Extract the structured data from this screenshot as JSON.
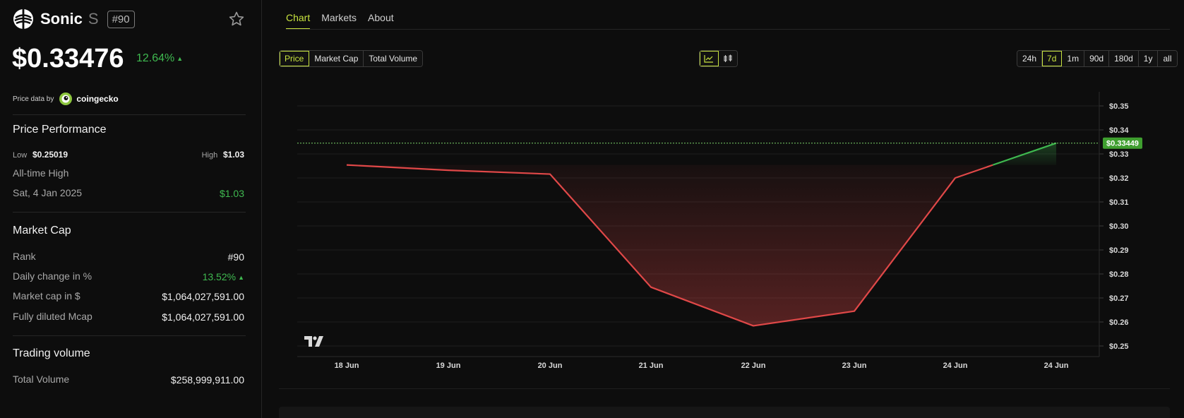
{
  "coin": {
    "name": "Sonic",
    "symbol": "S",
    "rank_badge": "#90",
    "price": "$0.33476",
    "change_24h": "12.64%",
    "logo_icon": "sonic-logo-icon",
    "favorite_icon": "star-outline-icon"
  },
  "provider": {
    "label": "Price data by",
    "name": "coingecko",
    "icon": "coingecko-logo-icon"
  },
  "price_performance": {
    "title": "Price Performance",
    "low_label": "Low",
    "low_value": "$0.25019",
    "high_label": "High",
    "high_value": "$1.03",
    "ath_label": "All-time High",
    "ath_date": "Sat, 4 Jan 2025",
    "ath_value": "$1.03"
  },
  "market_cap": {
    "title": "Market Cap",
    "rows": [
      {
        "label": "Rank",
        "value": "#90"
      },
      {
        "label": "Daily change in %",
        "value": "13.52%"
      },
      {
        "label": "Market cap in $",
        "value": "$1,064,027,591.00"
      },
      {
        "label": "Fully diluted Mcap",
        "value": "$1,064,027,591.00"
      }
    ]
  },
  "trading_volume": {
    "title": "Trading volume",
    "rows": [
      {
        "label": "Total Volume",
        "value": "$258,999,911.00"
      }
    ]
  },
  "tabs": [
    "Chart",
    "Markets",
    "About"
  ],
  "active_tab": "Chart",
  "metric_buttons": [
    "Price",
    "Market Cap",
    "Total Volume"
  ],
  "active_metric": "Price",
  "chart_type_icons": [
    "line-chart-icon",
    "candlestick-chart-icon"
  ],
  "active_chart_type": "line-chart-icon",
  "ranges": [
    "24h",
    "7d",
    "1m",
    "90d",
    "180d",
    "1y",
    "all"
  ],
  "active_range": "7d",
  "chart_watermark_icon": "tradingview-logo-icon",
  "colors": {
    "accent": "#c8e33f",
    "up": "#3fb950",
    "down": "#e04848",
    "price_tag_bg": "#3f9f2f"
  },
  "chart_data": {
    "type": "line",
    "x": [
      "18 Jun",
      "19 Jun",
      "20 Jun",
      "21 Jun",
      "22 Jun",
      "23 Jun",
      "24 Jun",
      "24 Jun"
    ],
    "x_tick_labels": [
      "18 Jun",
      "19 Jun",
      "20 Jun",
      "21 Jun",
      "22 Jun",
      "23 Jun",
      "24 Jun",
      "24 Jun"
    ],
    "series": [
      {
        "values": [
          0.3254,
          0.3232,
          0.3216,
          0.2745,
          0.2584,
          0.2645,
          0.32,
          0.3345
        ]
      }
    ],
    "baseline": 0.3254,
    "ylim": [
      0.245,
      0.355
    ],
    "y_ticks": [
      "0.25",
      "0.26",
      "0.27",
      "0.28",
      "0.29",
      "0.30",
      "0.31",
      "0.32",
      "0.33",
      "0.34",
      "0.35"
    ],
    "y_tick_prefix": "$",
    "current_price_label": "$0.33449",
    "current_price": 0.33449,
    "grid": true
  }
}
